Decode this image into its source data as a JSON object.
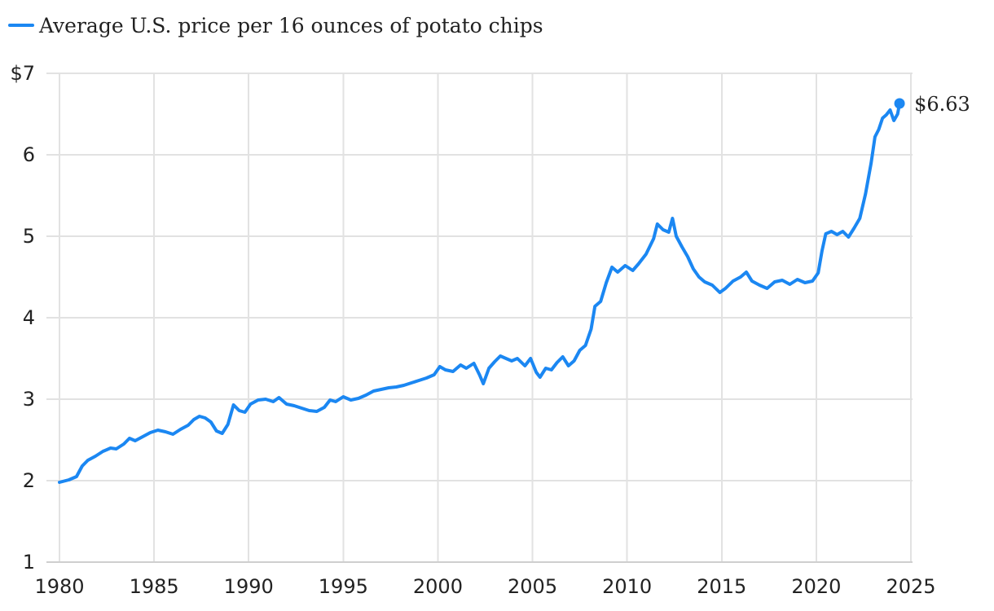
{
  "legend": {
    "label": "Average U.S. price per 16 ounces of potato chips",
    "color": "#1b87f2"
  },
  "chart_data": {
    "type": "line",
    "title": "",
    "xlabel": "",
    "ylabel": "",
    "xlim": [
      1980,
      2025
    ],
    "ylim": [
      1,
      7
    ],
    "x_ticks": [
      1980,
      1985,
      1990,
      1995,
      2000,
      2005,
      2010,
      2015,
      2020,
      2025
    ],
    "x_tick_labels": [
      "1980",
      "1985",
      "1990",
      "1995",
      "2000",
      "2005",
      "2010",
      "2015",
      "2020",
      "2025"
    ],
    "y_ticks": [
      1,
      2,
      3,
      4,
      5,
      6,
      7
    ],
    "y_tick_labels": [
      "1",
      "2",
      "3",
      "4",
      "5",
      "6",
      "$7"
    ],
    "grid": true,
    "legend_position": "top-left",
    "series": [
      {
        "name": "Average U.S. price per 16 ounces of potato chips",
        "color": "#1b87f2",
        "points": [
          [
            1980.0,
            1.98
          ],
          [
            1980.5,
            2.01
          ],
          [
            1980.9,
            2.05
          ],
          [
            1981.2,
            2.18
          ],
          [
            1981.5,
            2.25
          ],
          [
            1981.9,
            2.3
          ],
          [
            1982.3,
            2.36
          ],
          [
            1982.7,
            2.4
          ],
          [
            1983.0,
            2.39
          ],
          [
            1983.4,
            2.45
          ],
          [
            1983.7,
            2.52
          ],
          [
            1984.0,
            2.49
          ],
          [
            1984.4,
            2.54
          ],
          [
            1984.8,
            2.59
          ],
          [
            1985.2,
            2.62
          ],
          [
            1985.6,
            2.6
          ],
          [
            1986.0,
            2.57
          ],
          [
            1986.4,
            2.63
          ],
          [
            1986.8,
            2.68
          ],
          [
            1987.1,
            2.75
          ],
          [
            1987.4,
            2.79
          ],
          [
            1987.7,
            2.77
          ],
          [
            1988.0,
            2.72
          ],
          [
            1988.3,
            2.61
          ],
          [
            1988.6,
            2.58
          ],
          [
            1988.9,
            2.69
          ],
          [
            1989.2,
            2.93
          ],
          [
            1989.5,
            2.86
          ],
          [
            1989.8,
            2.84
          ],
          [
            1990.1,
            2.94
          ],
          [
            1990.5,
            2.99
          ],
          [
            1990.9,
            3.0
          ],
          [
            1991.3,
            2.97
          ],
          [
            1991.6,
            3.02
          ],
          [
            1992.0,
            2.94
          ],
          [
            1992.4,
            2.92
          ],
          [
            1992.8,
            2.89
          ],
          [
            1993.2,
            2.86
          ],
          [
            1993.6,
            2.85
          ],
          [
            1994.0,
            2.9
          ],
          [
            1994.3,
            2.99
          ],
          [
            1994.6,
            2.97
          ],
          [
            1995.0,
            3.03
          ],
          [
            1995.4,
            2.99
          ],
          [
            1995.8,
            3.01
          ],
          [
            1996.2,
            3.05
          ],
          [
            1996.6,
            3.1
          ],
          [
            1997.0,
            3.12
          ],
          [
            1997.4,
            3.14
          ],
          [
            1997.8,
            3.15
          ],
          [
            1998.2,
            3.17
          ],
          [
            1998.6,
            3.2
          ],
          [
            1999.0,
            3.23
          ],
          [
            1999.4,
            3.26
          ],
          [
            1999.8,
            3.3
          ],
          [
            2000.1,
            3.4
          ],
          [
            2000.4,
            3.36
          ],
          [
            2000.8,
            3.34
          ],
          [
            2001.2,
            3.42
          ],
          [
            2001.5,
            3.38
          ],
          [
            2001.9,
            3.44
          ],
          [
            2002.2,
            3.3
          ],
          [
            2002.4,
            3.19
          ],
          [
            2002.7,
            3.38
          ],
          [
            2003.0,
            3.46
          ],
          [
            2003.3,
            3.53
          ],
          [
            2003.6,
            3.5
          ],
          [
            2003.9,
            3.47
          ],
          [
            2004.2,
            3.5
          ],
          [
            2004.6,
            3.41
          ],
          [
            2004.9,
            3.5
          ],
          [
            2005.2,
            3.33
          ],
          [
            2005.4,
            3.27
          ],
          [
            2005.7,
            3.38
          ],
          [
            2006.0,
            3.36
          ],
          [
            2006.3,
            3.45
          ],
          [
            2006.6,
            3.52
          ],
          [
            2006.9,
            3.41
          ],
          [
            2007.2,
            3.47
          ],
          [
            2007.5,
            3.6
          ],
          [
            2007.8,
            3.66
          ],
          [
            2008.1,
            3.86
          ],
          [
            2008.3,
            4.14
          ],
          [
            2008.6,
            4.2
          ],
          [
            2008.9,
            4.43
          ],
          [
            2009.2,
            4.62
          ],
          [
            2009.5,
            4.56
          ],
          [
            2009.9,
            4.64
          ],
          [
            2010.3,
            4.58
          ],
          [
            2010.6,
            4.66
          ],
          [
            2011.0,
            4.78
          ],
          [
            2011.4,
            4.97
          ],
          [
            2011.6,
            5.15
          ],
          [
            2011.9,
            5.08
          ],
          [
            2012.2,
            5.05
          ],
          [
            2012.4,
            5.22
          ],
          [
            2012.6,
            5.0
          ],
          [
            2012.9,
            4.87
          ],
          [
            2013.2,
            4.75
          ],
          [
            2013.5,
            4.6
          ],
          [
            2013.8,
            4.5
          ],
          [
            2014.1,
            4.44
          ],
          [
            2014.5,
            4.4
          ],
          [
            2014.9,
            4.31
          ],
          [
            2015.2,
            4.36
          ],
          [
            2015.6,
            4.45
          ],
          [
            2016.0,
            4.5
          ],
          [
            2016.3,
            4.56
          ],
          [
            2016.6,
            4.45
          ],
          [
            2017.0,
            4.4
          ],
          [
            2017.4,
            4.36
          ],
          [
            2017.8,
            4.44
          ],
          [
            2018.2,
            4.46
          ],
          [
            2018.6,
            4.41
          ],
          [
            2019.0,
            4.47
          ],
          [
            2019.4,
            4.43
          ],
          [
            2019.8,
            4.45
          ],
          [
            2020.1,
            4.55
          ],
          [
            2020.3,
            4.82
          ],
          [
            2020.5,
            5.03
          ],
          [
            2020.8,
            5.06
          ],
          [
            2021.1,
            5.02
          ],
          [
            2021.4,
            5.06
          ],
          [
            2021.7,
            4.99
          ],
          [
            2022.0,
            5.1
          ],
          [
            2022.3,
            5.22
          ],
          [
            2022.6,
            5.52
          ],
          [
            2022.9,
            5.9
          ],
          [
            2023.1,
            6.22
          ],
          [
            2023.3,
            6.31
          ],
          [
            2023.5,
            6.45
          ],
          [
            2023.7,
            6.49
          ],
          [
            2023.9,
            6.55
          ],
          [
            2024.1,
            6.42
          ],
          [
            2024.3,
            6.5
          ],
          [
            2024.4,
            6.63
          ]
        ]
      }
    ],
    "end_label": "$6.63"
  }
}
